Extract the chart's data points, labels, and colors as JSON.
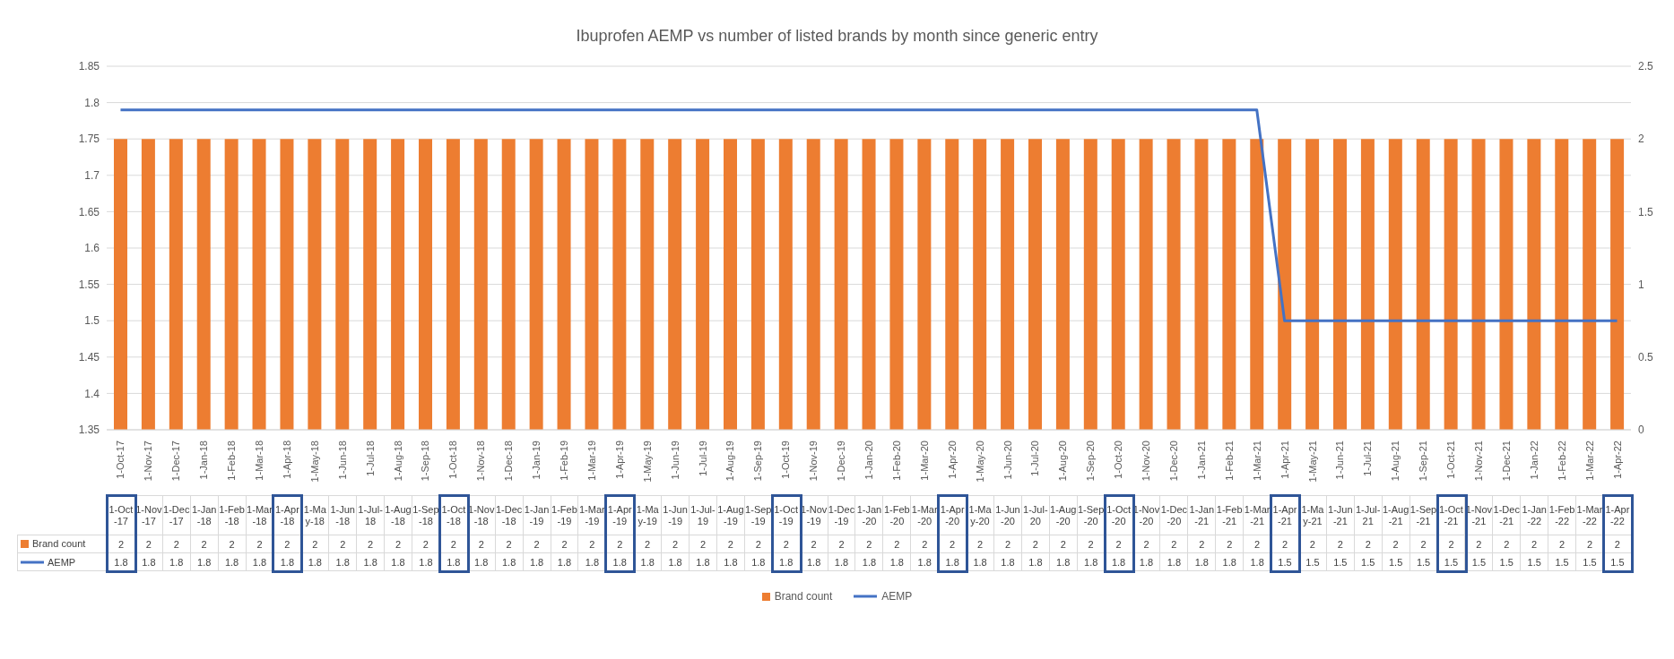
{
  "chart_data": {
    "type": "bar",
    "title": "Ibuprofen AEMP vs number of listed brands by month since generic entry",
    "categories": [
      "1-Oct-17",
      "1-Nov-17",
      "1-Dec-17",
      "1-Jan-18",
      "1-Feb-18",
      "1-Mar-18",
      "1-Apr-18",
      "1-May-18",
      "1-Jun-18",
      "1-Jul-18",
      "1-Aug-18",
      "1-Sep-18",
      "1-Oct-18",
      "1-Nov-18",
      "1-Dec-18",
      "1-Jan-19",
      "1-Feb-19",
      "1-Mar-19",
      "1-Apr-19",
      "1-May-19",
      "1-Jun-19",
      "1-Jul-19",
      "1-Aug-19",
      "1-Sep-19",
      "1-Oct-19",
      "1-Nov-19",
      "1-Dec-19",
      "1-Jan-20",
      "1-Feb-20",
      "1-Mar-20",
      "1-Apr-20",
      "1-May-20",
      "1-Jun-20",
      "1-Jul-20",
      "1-Aug-20",
      "1-Sep-20",
      "1-Oct-20",
      "1-Nov-20",
      "1-Dec-20",
      "1-Jan-21",
      "1-Feb-21",
      "1-Mar-21",
      "1-Apr-21",
      "1-May-21",
      "1-Jun-21",
      "1-Jul-21",
      "1-Aug-21",
      "1-Sep-21",
      "1-Oct-21",
      "1-Nov-21",
      "1-Dec-21",
      "1-Jan-22",
      "1-Feb-22",
      "1-Mar-22",
      "1-Apr-22"
    ],
    "series": [
      {
        "name": "Brand count",
        "axis": "y2",
        "color": "#ed7d31",
        "values": [
          2,
          2,
          2,
          2,
          2,
          2,
          2,
          2,
          2,
          2,
          2,
          2,
          2,
          2,
          2,
          2,
          2,
          2,
          2,
          2,
          2,
          2,
          2,
          2,
          2,
          2,
          2,
          2,
          2,
          2,
          2,
          2,
          2,
          2,
          2,
          2,
          2,
          2,
          2,
          2,
          2,
          2,
          2,
          2,
          2,
          2,
          2,
          2,
          2,
          2,
          2,
          2,
          2,
          2,
          2
        ],
        "value_labels": [
          "2",
          "2",
          "2",
          "2",
          "2",
          "2",
          "2",
          "2",
          "2",
          "2",
          "2",
          "2",
          "2",
          "2",
          "2",
          "2",
          "2",
          "2",
          "2",
          "2",
          "2",
          "2",
          "2",
          "2",
          "2",
          "2",
          "2",
          "2",
          "2",
          "2",
          "2",
          "2",
          "2",
          "2",
          "2",
          "2",
          "2",
          "2",
          "2",
          "2",
          "2",
          "2",
          "2",
          "2",
          "2",
          "2",
          "2",
          "2",
          "2",
          "2",
          "2",
          "2",
          "2",
          "2",
          "2"
        ]
      },
      {
        "name": "AEMP",
        "type": "line",
        "color": "#4472c4",
        "values": [
          1.79,
          1.79,
          1.79,
          1.79,
          1.79,
          1.79,
          1.79,
          1.79,
          1.79,
          1.79,
          1.79,
          1.79,
          1.79,
          1.79,
          1.79,
          1.79,
          1.79,
          1.79,
          1.79,
          1.79,
          1.79,
          1.79,
          1.79,
          1.79,
          1.79,
          1.79,
          1.79,
          1.79,
          1.79,
          1.79,
          1.79,
          1.79,
          1.79,
          1.79,
          1.79,
          1.79,
          1.79,
          1.79,
          1.79,
          1.79,
          1.79,
          1.79,
          1.5,
          1.5,
          1.5,
          1.5,
          1.5,
          1.5,
          1.5,
          1.5,
          1.5,
          1.5,
          1.5,
          1.5,
          1.5
        ],
        "value_labels": [
          "1.8",
          "1.8",
          "1.8",
          "1.8",
          "1.8",
          "1.8",
          "1.8",
          "1.8",
          "1.8",
          "1.8",
          "1.8",
          "1.8",
          "1.8",
          "1.8",
          "1.8",
          "1.8",
          "1.8",
          "1.8",
          "1.8",
          "1.8",
          "1.8",
          "1.8",
          "1.8",
          "1.8",
          "1.8",
          "1.8",
          "1.8",
          "1.8",
          "1.8",
          "1.8",
          "1.8",
          "1.8",
          "1.8",
          "1.8",
          "1.8",
          "1.8",
          "1.8",
          "1.8",
          "1.8",
          "1.8",
          "1.8",
          "1.8",
          "1.5",
          "1.5",
          "1.5",
          "1.5",
          "1.5",
          "1.5",
          "1.5",
          "1.5",
          "1.5",
          "1.5",
          "1.5",
          "1.5",
          "1.5"
        ]
      }
    ],
    "ylim": [
      1.35,
      1.85
    ],
    "yticks": [
      1.35,
      1.4,
      1.45,
      1.5,
      1.55,
      1.6,
      1.65,
      1.7,
      1.75,
      1.8,
      1.85
    ],
    "y2lim": [
      0,
      2.5
    ],
    "y2ticks": [
      0,
      0.5,
      1,
      1.5,
      2,
      2.5
    ],
    "grid": "y",
    "legend": "bottom",
    "marker": "none",
    "line_style": "solid"
  }
}
